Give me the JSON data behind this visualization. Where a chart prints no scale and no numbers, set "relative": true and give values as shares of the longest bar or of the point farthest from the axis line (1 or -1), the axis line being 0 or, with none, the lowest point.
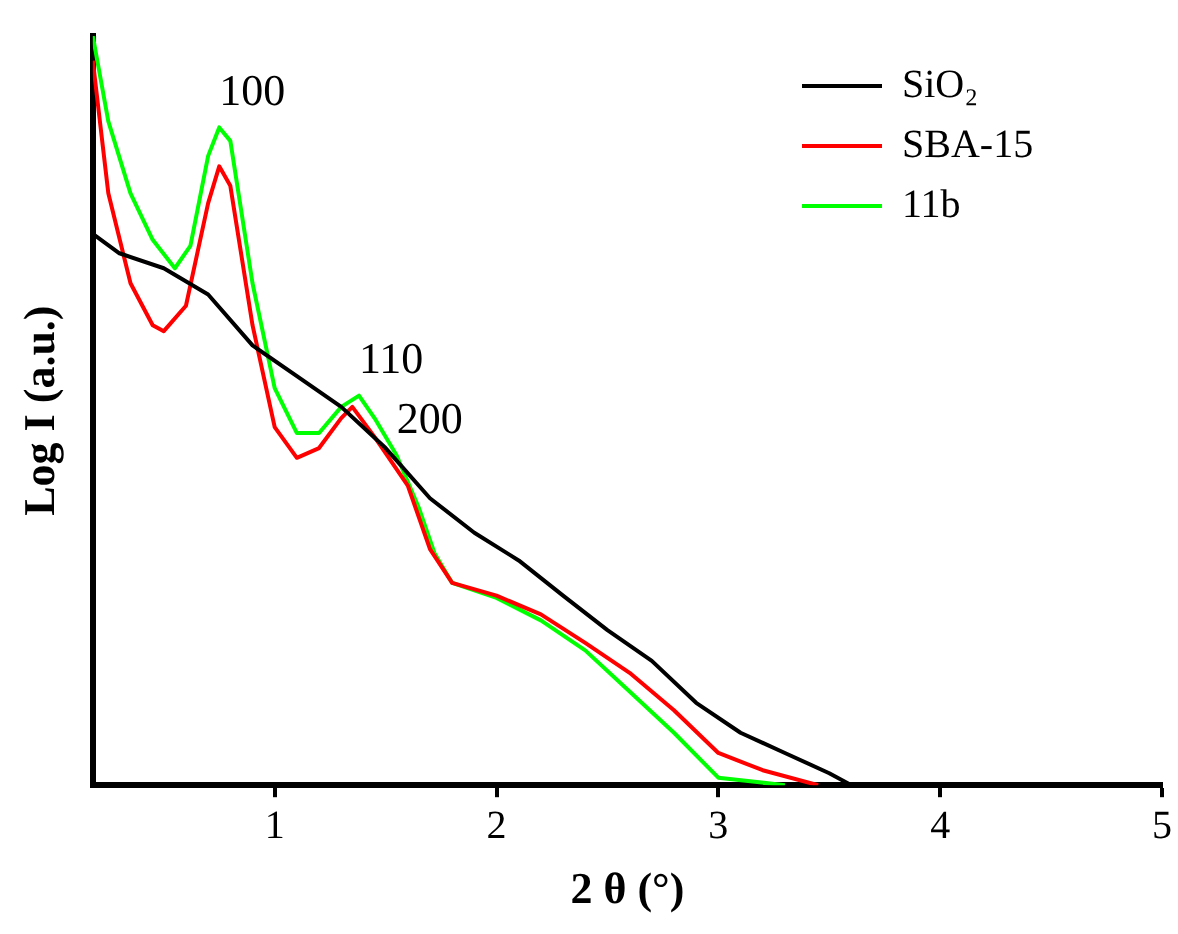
{
  "chart_data": {
    "type": "line",
    "xlabel": "2 θ (°)",
    "ylabel": "Log I (a.u.)",
    "relative": true,
    "xlim": [
      0.18,
      5
    ],
    "xticks": [
      1,
      2,
      3,
      4,
      5
    ],
    "legend": "top right",
    "grid": false,
    "marker": "none",
    "line_style": "solid",
    "annotations": [
      {
        "text": "100",
        "x": 0.75,
        "y": 0.878
      },
      {
        "text": "110",
        "x": 1.38,
        "y": 0.52
      },
      {
        "text": "200",
        "x": 1.55,
        "y": 0.44
      }
    ],
    "series": [
      {
        "name": "SiO₂",
        "color": "#000000",
        "x": [
          0.18,
          0.3,
          0.5,
          0.7,
          0.9,
          1.1,
          1.3,
          1.5,
          1.7,
          1.9,
          2.1,
          2.3,
          2.5,
          2.7,
          2.9,
          3.1,
          3.3,
          3.5,
          3.6
        ],
        "values": [
          0.736,
          0.71,
          0.69,
          0.655,
          0.587,
          0.546,
          0.505,
          0.45,
          0.383,
          0.337,
          0.3,
          0.253,
          0.207,
          0.166,
          0.11,
          0.07,
          0.043,
          0.016,
          0
        ]
      },
      {
        "name": "SBA-15",
        "color": "#ff0000",
        "x": [
          0.18,
          0.25,
          0.35,
          0.45,
          0.5,
          0.6,
          0.7,
          0.75,
          0.8,
          0.9,
          1.0,
          1.1,
          1.2,
          1.3,
          1.35,
          1.45,
          1.6,
          1.7,
          1.8,
          2.0,
          2.2,
          2.4,
          2.6,
          2.8,
          3.0,
          3.2,
          3.45
        ],
        "values": [
          0.967,
          0.79,
          0.67,
          0.614,
          0.606,
          0.64,
          0.777,
          0.826,
          0.8,
          0.614,
          0.478,
          0.437,
          0.45,
          0.49,
          0.505,
          0.465,
          0.4,
          0.315,
          0.27,
          0.253,
          0.228,
          0.19,
          0.15,
          0.1,
          0.043,
          0.02,
          0
        ]
      },
      {
        "name": "11b",
        "color": "#00ff00",
        "x": [
          0.18,
          0.25,
          0.35,
          0.45,
          0.55,
          0.62,
          0.7,
          0.75,
          0.8,
          0.9,
          1.0,
          1.1,
          1.2,
          1.3,
          1.38,
          1.45,
          1.55,
          1.65,
          1.72,
          1.8,
          2.0,
          2.2,
          2.4,
          2.6,
          2.8,
          3.0,
          3.3
        ],
        "values": [
          1,
          0.886,
          0.79,
          0.728,
          0.69,
          0.72,
          0.84,
          0.878,
          0.86,
          0.67,
          0.53,
          0.47,
          0.47,
          0.505,
          0.52,
          0.49,
          0.44,
          0.37,
          0.31,
          0.27,
          0.25,
          0.22,
          0.18,
          0.125,
          0.07,
          0.01,
          0
        ]
      }
    ]
  }
}
